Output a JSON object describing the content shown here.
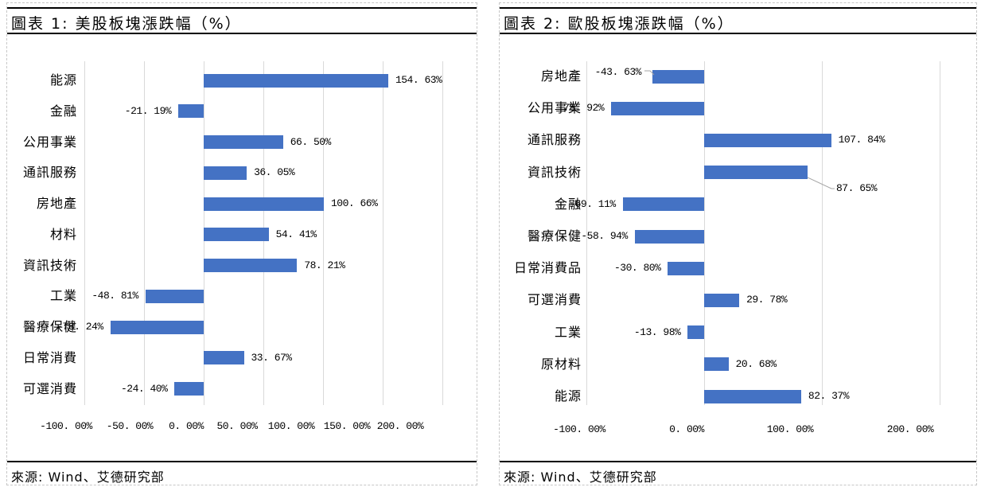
{
  "bar_color": "#4472C4",
  "gridline_color": "#d9d9d9",
  "leader_line_color": "#a6a6a6",
  "panels": [
    {
      "title": "圖表 1: 美股板塊漲跌幅（%）",
      "source": "來源: Wind、艾德研究部"
    },
    {
      "title": "圖表 2: 歐股板塊漲跌幅（%）",
      "source": "來源: Wind、艾德研究部"
    }
  ],
  "chart_data": [
    {
      "type": "bar",
      "orientation": "horizontal",
      "title": "美股板塊漲跌幅（%）",
      "categories": [
        "能源",
        "金融",
        "公用事業",
        "通訊服務",
        "房地產",
        "材料",
        "資訊技術",
        "工業",
        "醫療保健",
        "日常消費",
        "可選消費"
      ],
      "values": [
        154.63,
        -21.19,
        66.5,
        36.05,
        100.66,
        54.41,
        78.21,
        -48.81,
        -78.24,
        33.67,
        -24.4
      ],
      "value_labels": [
        "154. 63%",
        "-21. 19%",
        "66. 50%",
        "36. 05%",
        "100. 66%",
        "54. 41%",
        "78. 21%",
        "-48. 81%",
        "-78. 24%",
        "33. 67%",
        "-24. 40%"
      ],
      "x_ticks": [
        -100,
        -50,
        0,
        50,
        100,
        150,
        200
      ],
      "x_tick_labels": [
        "-100. 00%",
        "-50. 00%",
        "0. 00%",
        "50. 00%",
        "100. 00%",
        "150. 00%",
        "200. 00%"
      ],
      "xlim": [
        -100,
        200
      ],
      "grid": true,
      "legend": false
    },
    {
      "type": "bar",
      "orientation": "horizontal",
      "title": "歐股板塊漲跌幅（%）",
      "categories": [
        "房地產",
        "公用事業",
        "通訊服務",
        "資訊技術",
        "金融",
        "醫療保健",
        "日常消費品",
        "可選消費",
        "工業",
        "原材料",
        "能源"
      ],
      "values": [
        -43.63,
        -78.92,
        107.84,
        87.65,
        -69.11,
        -58.94,
        -30.8,
        29.78,
        -13.98,
        20.68,
        82.37
      ],
      "value_labels": [
        "-43. 63%",
        "-78. 92%",
        "107. 84%",
        "87. 65%",
        "-69. 11%",
        "-58. 94%",
        "-30. 80%",
        "29. 78%",
        "-13. 98%",
        "20. 68%",
        "82. 37%"
      ],
      "x_ticks": [
        -100,
        0,
        100,
        200
      ],
      "x_tick_labels": [
        "-100. 00%",
        "0. 00%",
        "100. 00%",
        "200. 00%"
      ],
      "xlim": [
        -100,
        200
      ],
      "grid": true,
      "legend": false
    }
  ]
}
